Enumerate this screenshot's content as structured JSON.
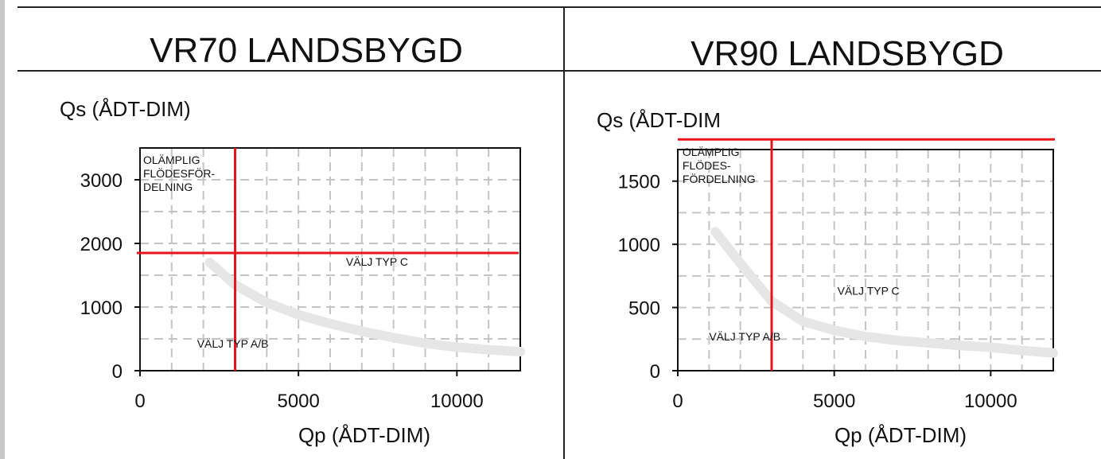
{
  "chart_data": [
    {
      "type": "line",
      "title": "VR70 LANDSBYGD",
      "xlabel": "Qp (ÅDT-DIM)",
      "ylabel": "Qs (ÅDT-DIM)",
      "xlim": [
        0,
        12000
      ],
      "ylim": [
        0,
        3500
      ],
      "xticks": [
        0,
        5000,
        10000
      ],
      "yticks": [
        0,
        1000,
        2000,
        3000
      ],
      "grid": true,
      "series": [
        {
          "color": "#e6e6e6",
          "x": [
            2200,
            3000,
            4000,
            5000,
            6000,
            7000,
            8000,
            9000,
            10000,
            11000,
            12000
          ],
          "y": [
            1700,
            1350,
            1070,
            880,
            740,
            620,
            520,
            430,
            370,
            330,
            300
          ]
        }
      ],
      "limit_lines": {
        "color": "#e8141c",
        "vertical_x": 3000,
        "horizontal_y": 1850
      },
      "annotations": [
        {
          "lines": [
            "OLÄMPLIG",
            "FLÖDESFÖR-",
            "DELNING"
          ],
          "x": 100,
          "y": 3250
        },
        {
          "lines": [
            "VÄLJ TYP C"
          ],
          "x": 6500,
          "y": 1650
        },
        {
          "lines": [
            "VÄLJ TYP A/B"
          ],
          "x": 1800,
          "y": 360
        }
      ]
    },
    {
      "type": "line",
      "title": "VR90 LANDSBYGD",
      "xlabel": "Qp (ÅDT-DIM)",
      "ylabel": "Qs (ÅDT-DIM",
      "xlim": [
        0,
        12000
      ],
      "ylim": [
        0,
        1750
      ],
      "xticks": [
        0,
        5000,
        10000
      ],
      "yticks": [
        0,
        500,
        1000,
        1500
      ],
      "grid": true,
      "series": [
        {
          "color": "#e6e6e6",
          "x": [
            1200,
            2000,
            3000,
            4000,
            5000,
            6000,
            7000,
            8000,
            9000,
            10000,
            11000,
            12000
          ],
          "y": [
            1100,
            850,
            550,
            390,
            320,
            270,
            240,
            220,
            200,
            185,
            160,
            140
          ]
        }
      ],
      "limit_lines": {
        "color": "#e8141c",
        "vertical_x": 3000,
        "horizontal_y": 1830
      },
      "annotations": [
        {
          "lines": [
            "OLÄMPLIG",
            "FLÖDES-",
            "FÖRDELNING"
          ],
          "x": 150,
          "y": 1700
        },
        {
          "lines": [
            "VÄLJ TYP C"
          ],
          "x": 5100,
          "y": 600
        },
        {
          "lines": [
            "VÄLJ TYP A/B"
          ],
          "x": 1000,
          "y": 240
        }
      ]
    }
  ]
}
